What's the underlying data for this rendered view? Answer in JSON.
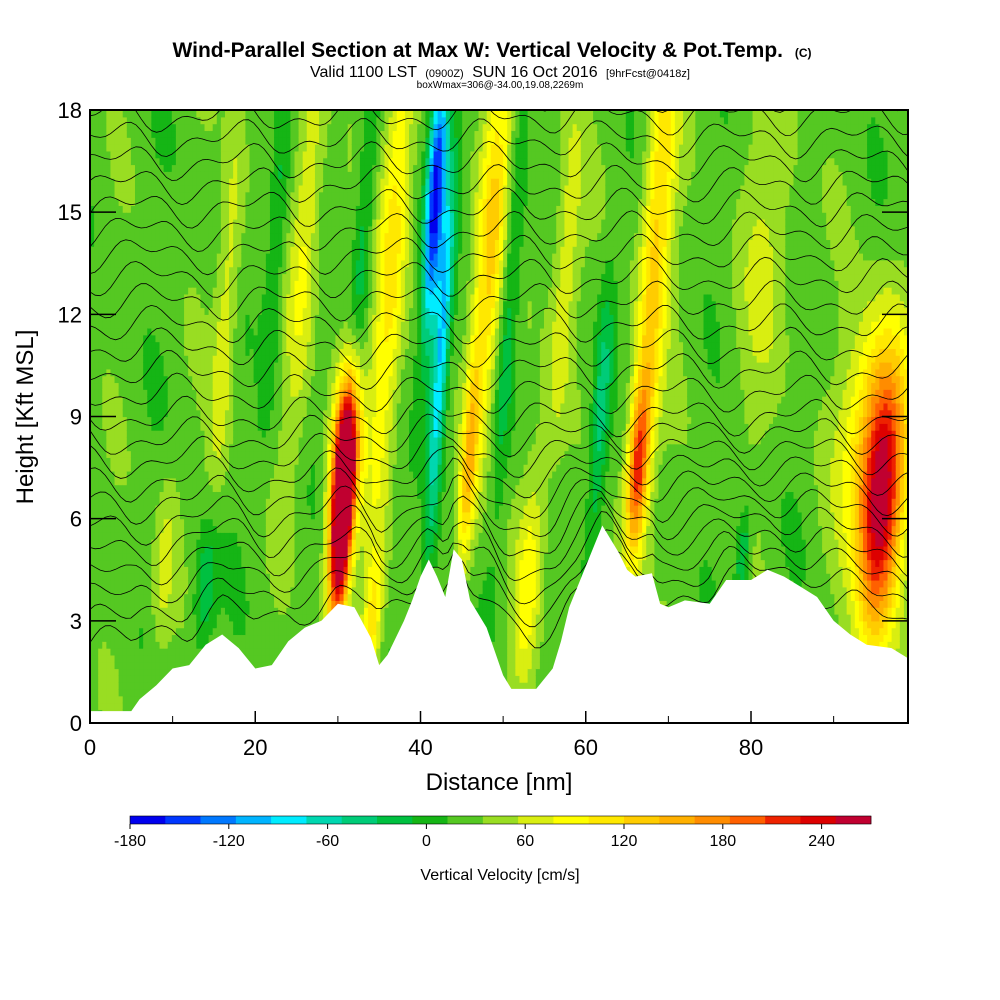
{
  "chart_data": {
    "type": "heatmap",
    "title": "Wind-Parallel Section at Max W: Vertical Velocity & Pot.Temp.",
    "title_mark": "(C)",
    "subtitle": {
      "valid": "Valid 1100 LST",
      "utc": "(0900Z)",
      "date": "SUN 16 Oct 2016",
      "forecast": "[9hrFcst@0418z]"
    },
    "box_line": "boxWmax=306@-34.00,19.08,2269m",
    "xlabel": "Distance [nm]",
    "ylabel": "Height [Kft MSL]",
    "xlim": [
      0,
      99
    ],
    "ylim": [
      0,
      18
    ],
    "x_ticks": [
      0,
      20,
      40,
      60,
      80
    ],
    "y_ticks": [
      0,
      3,
      6,
      9,
      12,
      15,
      18
    ],
    "colorbar": {
      "title": "Vertical Velocity [cm/s]",
      "min": -180,
      "max": 270,
      "step": 20,
      "tick_labels": [
        -180,
        -120,
        -60,
        0,
        60,
        120,
        180,
        240
      ],
      "colors": [
        "#0000ee",
        "#0037ff",
        "#0078ff",
        "#00b4ff",
        "#00ecff",
        "#00d7b0",
        "#00cc78",
        "#00c040",
        "#15b515",
        "#55c822",
        "#99dd22",
        "#d9ee11",
        "#ffff00",
        "#ffe800",
        "#ffcc00",
        "#ffb000",
        "#ff8c00",
        "#ff6000",
        "#ee2200",
        "#dd0000",
        "#c00030"
      ]
    },
    "terrain_kft": [
      [
        0,
        0.35
      ],
      [
        5,
        0.35
      ],
      [
        6,
        0.7
      ],
      [
        8,
        1.1
      ],
      [
        10,
        1.6
      ],
      [
        12,
        1.7
      ],
      [
        14,
        2.3
      ],
      [
        16,
        2.6
      ],
      [
        18,
        2.2
      ],
      [
        20,
        1.6
      ],
      [
        22,
        1.7
      ],
      [
        24,
        2.4
      ],
      [
        26,
        2.8
      ],
      [
        28,
        3.0
      ],
      [
        30,
        3.5
      ],
      [
        32,
        3.4
      ],
      [
        34,
        2.5
      ],
      [
        35,
        1.7
      ],
      [
        36,
        2.0
      ],
      [
        38,
        3.0
      ],
      [
        39,
        3.6
      ],
      [
        40,
        4.3
      ],
      [
        41,
        4.8
      ],
      [
        42,
        4.3
      ],
      [
        43,
        3.7
      ],
      [
        44,
        5.1
      ],
      [
        45,
        4.8
      ],
      [
        46,
        3.6
      ],
      [
        48,
        2.8
      ],
      [
        50,
        1.4
      ],
      [
        51,
        1.0
      ],
      [
        54,
        1.0
      ],
      [
        56,
        1.6
      ],
      [
        57,
        2.4
      ],
      [
        58,
        3.4
      ],
      [
        60,
        4.6
      ],
      [
        62,
        5.8
      ],
      [
        64,
        5.0
      ],
      [
        65,
        4.5
      ],
      [
        66,
        4.3
      ],
      [
        68,
        4.4
      ],
      [
        69,
        3.5
      ],
      [
        70,
        3.4
      ],
      [
        72,
        3.6
      ],
      [
        75,
        3.5
      ],
      [
        77,
        4.2
      ],
      [
        80,
        4.2
      ],
      [
        82,
        4.5
      ],
      [
        84,
        4.3
      ],
      [
        86,
        4.0
      ],
      [
        88,
        3.7
      ],
      [
        90,
        3.0
      ],
      [
        92,
        2.6
      ],
      [
        94,
        2.3
      ],
      [
        97,
        2.2
      ],
      [
        99,
        1.9
      ]
    ],
    "w_features": [
      {
        "x": 30.5,
        "z": 6.0,
        "dx": 0.9,
        "dz": 2.3,
        "w": 285
      },
      {
        "x": 30.8,
        "z": 7.8,
        "dx": 1.2,
        "dz": 1.8,
        "w": 150
      },
      {
        "x": 34.2,
        "z": 3.0,
        "dx": 0.8,
        "dz": 1.3,
        "w": 70
      },
      {
        "x": 36.5,
        "z": 13.5,
        "dx": 1.3,
        "dz": 6.0,
        "w": 85
      },
      {
        "x": 41.8,
        "z": 15.5,
        "dx": 0.8,
        "dz": 3.0,
        "w": -185
      },
      {
        "x": 42.5,
        "z": 11.0,
        "dx": 0.7,
        "dz": 4.0,
        "w": -120
      },
      {
        "x": 45.8,
        "z": 7.5,
        "dx": 0.7,
        "dz": 2.2,
        "w": 100
      },
      {
        "x": 48.5,
        "z": 14.0,
        "dx": 1.4,
        "dz": 4.5,
        "w": 100
      },
      {
        "x": 50.6,
        "z": 12.0,
        "dx": 0.9,
        "dz": 4.5,
        "w": -55
      },
      {
        "x": 53.0,
        "z": 4.0,
        "dx": 1.1,
        "dz": 2.5,
        "w": 60
      },
      {
        "x": 61.8,
        "z": 9.0,
        "dx": 0.8,
        "dz": 3.0,
        "w": -65
      },
      {
        "x": 66.3,
        "z": 7.5,
        "dx": 0.9,
        "dz": 1.8,
        "w": 160
      },
      {
        "x": 68.5,
        "z": 14.0,
        "dx": 1.3,
        "dz": 5.0,
        "w": 100
      },
      {
        "x": 95.8,
        "z": 6.2,
        "dx": 1.8,
        "dz": 2.8,
        "w": 200
      },
      {
        "x": 94.5,
        "z": 8.5,
        "dx": 2.5,
        "dz": 2.5,
        "w": 90
      },
      {
        "x": 26.0,
        "z": 14.0,
        "dx": 1.2,
        "dz": 4.5,
        "w": 55
      },
      {
        "x": 16.5,
        "z": 12.0,
        "dx": 1.0,
        "dz": 5.0,
        "w": 45
      },
      {
        "x": 14.0,
        "z": 4.0,
        "dx": 1.0,
        "dz": 1.5,
        "w": -60
      },
      {
        "x": 9.0,
        "z": 4.5,
        "dx": 1.0,
        "dz": 2.0,
        "w": 40
      },
      {
        "x": 22.5,
        "z": 14.0,
        "dx": 0.8,
        "dz": 4.0,
        "w": -40
      },
      {
        "x": 33.0,
        "z": 14.0,
        "dx": 0.8,
        "dz": 4.0,
        "w": -45
      },
      {
        "x": 57.5,
        "z": 13.0,
        "dx": 1.2,
        "dz": 4.0,
        "w": 50
      },
      {
        "x": 79.0,
        "z": 5.0,
        "dx": 0.6,
        "dz": 1.0,
        "w": -60
      },
      {
        "x": 82.0,
        "z": 14.0,
        "dx": 2.5,
        "dz": 4.0,
        "w": 30
      }
    ],
    "theta_lines": 25
  }
}
